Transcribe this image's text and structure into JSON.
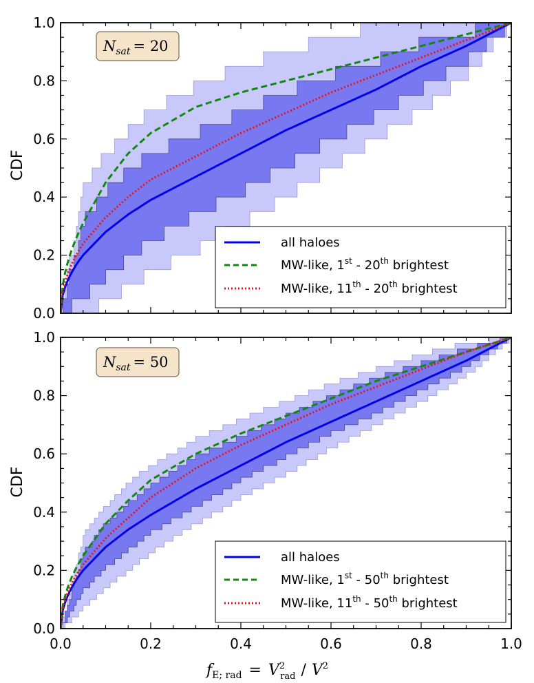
{
  "chart_data": [
    {
      "type": "line",
      "panel": "top",
      "annotation": {
        "symbol": "N",
        "subscript": "sat",
        "equals": "= 20"
      },
      "ylabel": "CDF",
      "xlim": [
        0.0,
        1.0
      ],
      "ylim": [
        0.0,
        1.0
      ],
      "xticks": [
        "0.0",
        "0.2",
        "0.4",
        "0.6",
        "0.8",
        "1.0"
      ],
      "yticks": [
        "0.0",
        "0.2",
        "0.4",
        "0.6",
        "0.8",
        "1.0"
      ],
      "step_count": 20,
      "x": [
        0.0,
        0.05,
        0.1,
        0.15,
        0.2,
        0.3,
        0.4,
        0.5,
        0.6,
        0.7,
        0.8,
        0.9,
        1.0
      ],
      "series": [
        {
          "name": "all haloes",
          "style": "solid",
          "color": "#0000ee",
          "values": [
            0.0,
            0.2,
            0.28,
            0.34,
            0.39,
            0.47,
            0.55,
            0.63,
            0.7,
            0.77,
            0.85,
            0.92,
            1.0
          ]
        },
        {
          "name": "MW-like, 1st - 20th brightest",
          "style": "dashed",
          "color": "#118811",
          "values": [
            0.0,
            0.31,
            0.45,
            0.55,
            0.62,
            0.71,
            0.76,
            0.8,
            0.84,
            0.88,
            0.92,
            0.96,
            1.0
          ]
        },
        {
          "name": "MW-like, 11th - 20th brightest",
          "style": "dotted",
          "color": "#ee1111",
          "values": [
            0.0,
            0.24,
            0.33,
            0.4,
            0.46,
            0.54,
            0.62,
            0.69,
            0.76,
            0.82,
            0.88,
            0.94,
            1.0
          ]
        }
      ],
      "bands": {
        "outer": {
          "color": "#c8c8fa",
          "lower": [
            0.0,
            0.0,
            0.04,
            0.09,
            0.14,
            0.22,
            0.31,
            0.4,
            0.5,
            0.6,
            0.7,
            0.82,
            1.0
          ],
          "upper": [
            0.0,
            0.44,
            0.55,
            0.63,
            0.7,
            0.78,
            0.85,
            0.9,
            0.95,
            0.99,
            1.0,
            1.0,
            1.0
          ]
        },
        "inner": {
          "color": "#7878f0",
          "lower": [
            0.0,
            0.06,
            0.13,
            0.19,
            0.25,
            0.34,
            0.42,
            0.51,
            0.6,
            0.68,
            0.77,
            0.87,
            1.0
          ],
          "upper": [
            0.0,
            0.32,
            0.42,
            0.49,
            0.55,
            0.62,
            0.69,
            0.76,
            0.82,
            0.87,
            0.93,
            0.97,
            1.0
          ]
        }
      },
      "legend": {
        "loc": "lower right",
        "entries": [
          {
            "base": "all haloes",
            "sup1": "",
            "mid": "",
            "sup2": "",
            "tail": ""
          },
          {
            "base": "MW-like,  1",
            "sup1": "st",
            "mid": " - 20",
            "sup2": "th",
            "tail": " brightest"
          },
          {
            "base": "MW-like, 11",
            "sup1": "th",
            "mid": " - 20",
            "sup2": "th",
            "tail": " brightest"
          }
        ]
      }
    },
    {
      "type": "line",
      "panel": "bottom",
      "annotation": {
        "symbol": "N",
        "subscript": "sat",
        "equals": "= 50"
      },
      "ylabel": "CDF",
      "xlim": [
        0.0,
        1.0
      ],
      "ylim": [
        0.0,
        1.0
      ],
      "xticks": [
        "0.0",
        "0.2",
        "0.4",
        "0.6",
        "0.8",
        "1.0"
      ],
      "yticks": [
        "0.0",
        "0.2",
        "0.4",
        "0.6",
        "0.8",
        "1.0"
      ],
      "step_count": 50,
      "x": [
        0.0,
        0.05,
        0.1,
        0.15,
        0.2,
        0.3,
        0.4,
        0.5,
        0.6,
        0.7,
        0.8,
        0.9,
        1.0
      ],
      "series": [
        {
          "name": "all haloes",
          "style": "solid",
          "color": "#0000ee",
          "values": [
            0.0,
            0.2,
            0.28,
            0.34,
            0.39,
            0.48,
            0.56,
            0.64,
            0.71,
            0.78,
            0.85,
            0.92,
            1.0
          ]
        },
        {
          "name": "MW-like, 1st - 50th brightest",
          "style": "dashed",
          "color": "#118811",
          "values": [
            0.0,
            0.25,
            0.36,
            0.44,
            0.51,
            0.6,
            0.67,
            0.73,
            0.79,
            0.85,
            0.9,
            0.95,
            1.0
          ]
        },
        {
          "name": "MW-like, 11th - 50th brightest",
          "style": "dotted",
          "color": "#ee1111",
          "values": [
            0.0,
            0.22,
            0.31,
            0.38,
            0.45,
            0.55,
            0.63,
            0.7,
            0.77,
            0.83,
            0.89,
            0.95,
            1.0
          ]
        }
      ],
      "bands": {
        "outer": {
          "color": "#c8c8fa",
          "lower": [
            0.0,
            0.07,
            0.14,
            0.2,
            0.26,
            0.36,
            0.45,
            0.53,
            0.62,
            0.7,
            0.78,
            0.87,
            1.0
          ],
          "upper": [
            0.0,
            0.32,
            0.42,
            0.5,
            0.56,
            0.65,
            0.72,
            0.78,
            0.84,
            0.89,
            0.94,
            0.98,
            1.0
          ]
        },
        "inner": {
          "color": "#7878f0",
          "lower": [
            0.0,
            0.13,
            0.21,
            0.27,
            0.33,
            0.42,
            0.51,
            0.59,
            0.67,
            0.74,
            0.82,
            0.9,
            1.0
          ],
          "upper": [
            0.0,
            0.26,
            0.36,
            0.43,
            0.49,
            0.59,
            0.66,
            0.73,
            0.8,
            0.86,
            0.91,
            0.96,
            1.0
          ]
        }
      },
      "legend": {
        "loc": "lower right",
        "entries": [
          {
            "base": "all haloes",
            "sup1": "",
            "mid": "",
            "sup2": "",
            "tail": ""
          },
          {
            "base": "MW-like,  1",
            "sup1": "st",
            "mid": " - 50",
            "sup2": "th",
            "tail": " brightest"
          },
          {
            "base": "MW-like, 11",
            "sup1": "th",
            "mid": " - 50",
            "sup2": "th",
            "tail": " brightest"
          }
        ]
      }
    }
  ],
  "shared_xlabel": {
    "f": "f",
    "f_sub": "E; rad",
    "eq": "=",
    "v1": "V",
    "v1_sup": "2",
    "v1_sub": "rad",
    "slash": "/",
    "v2": "V",
    "v2_sup": "2"
  }
}
